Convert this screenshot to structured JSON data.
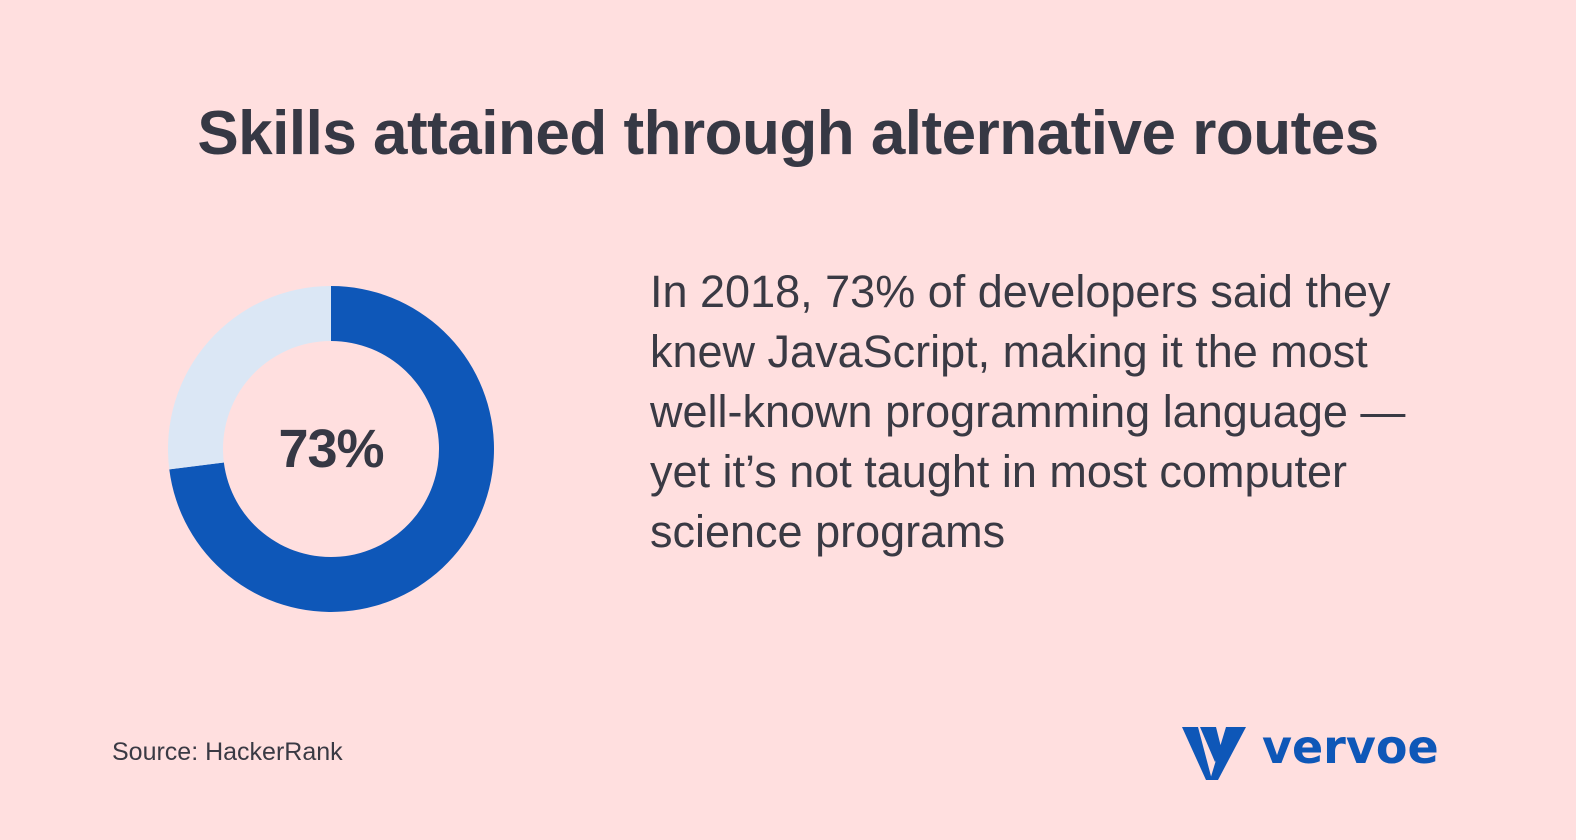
{
  "title": "Skills attained through alternative routes",
  "chart_data": {
    "type": "pie",
    "variant": "donut",
    "center_label": "73%",
    "slices": [
      {
        "value": 73,
        "color": "#0e57b8"
      },
      {
        "value": 27,
        "color": "#dbe7f5"
      }
    ]
  },
  "description": "In 2018, 73% of developers said they knew JavaScript, making it the most well-known programming language — yet it’s not taught in most computer science programs",
  "source": "Source: HackerRank",
  "logo": {
    "text": "vervoe",
    "color": "#0e57b8"
  }
}
